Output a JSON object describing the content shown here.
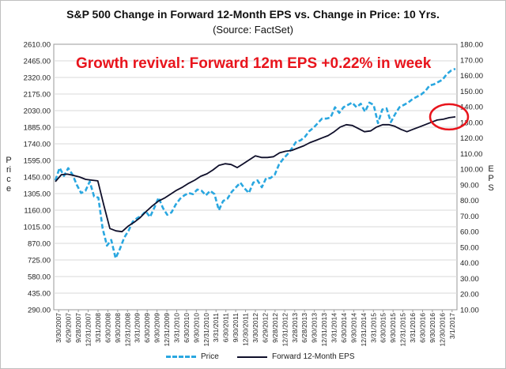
{
  "title": "S&P 500 Change in Forward 12-Month EPS vs. Change in Price: 10 Yrs.",
  "subtitle": "(Source: FactSet)",
  "annotation": "Growth revival: Forward 12m EPS +0.22% in week",
  "left_axis_title": "Price",
  "right_axis_title": "EPS",
  "colors": {
    "price": "#2aa7e0",
    "eps": "#0f0f2a",
    "annotation": "#e8141c",
    "grid": "#d9d9d9"
  },
  "chart_data": {
    "type": "line",
    "title": "S&P 500 Change in Forward 12-Month EPS vs. Change in Price: 10 Yrs.",
    "subtitle": "(Source: FactSet)",
    "ylabel": "Price",
    "y2label": "EPS",
    "ylim": [
      290,
      2610
    ],
    "y2lim": [
      10,
      180
    ],
    "yticks": [
      "2610.00",
      "2465.00",
      "2320.00",
      "2175.00",
      "2030.00",
      "1885.00",
      "1740.00",
      "1595.00",
      "1450.00",
      "1305.00",
      "1160.00",
      "1015.00",
      "870.00",
      "725.00",
      "580.00",
      "435.00",
      "290.00"
    ],
    "y2ticks": [
      "180.00",
      "170.00",
      "160.00",
      "150.00",
      "140.00",
      "130.00",
      "120.00",
      "110.00",
      "100.00",
      "90.00",
      "80.00",
      "70.00",
      "60.00",
      "50.00",
      "40.00",
      "30.00",
      "20.00",
      "10.00"
    ],
    "xticks": [
      "3/30/2007",
      "6/29/2007",
      "9/28/2007",
      "12/31/2007",
      "3/31/2008",
      "6/30/2008",
      "9/30/2008",
      "12/31/2008",
      "3/31/2009",
      "6/30/2009",
      "9/30/2009",
      "12/31/2009",
      "3/31/2010",
      "6/30/2010",
      "9/30/2010",
      "12/31/2010",
      "3/31/2011",
      "6/30/2011",
      "9/30/2011",
      "12/30/2011",
      "3/30/2012",
      "6/29/2012",
      "9/28/2012",
      "12/31/2012",
      "3/28/2013",
      "6/28/2013",
      "9/30/2013",
      "12/31/2013",
      "3/31/2014",
      "6/30/2014",
      "9/30/2014",
      "12/31/2014",
      "3/31/2015",
      "6/30/2015",
      "9/30/2015",
      "12/31/2015",
      "3/31/2016",
      "6/30/2016",
      "9/30/2016",
      "12/30/2016",
      "3/1/2017"
    ],
    "grid": true,
    "legend_position": "bottom",
    "series": [
      {
        "name": "Price",
        "axis": "left",
        "style": "dashed",
        "values": [
          1420,
          1530,
          1460,
          1527,
          1470,
          1380,
          1310,
          1330,
          1410,
          1280,
          1270,
          1000,
          850,
          900,
          740,
          820,
          920,
          980,
          1060,
          1090,
          1110,
          1150,
          1100,
          1180,
          1270,
          1180,
          1120,
          1140,
          1210,
          1260,
          1290,
          1310,
          1300,
          1340,
          1330,
          1290,
          1330,
          1300,
          1160,
          1240,
          1260,
          1320,
          1360,
          1400,
          1350,
          1310,
          1400,
          1420,
          1360,
          1440,
          1440,
          1470,
          1560,
          1610,
          1650,
          1700,
          1760,
          1770,
          1800,
          1850,
          1880,
          1920,
          1960,
          1960,
          1970,
          2060,
          2010,
          2060,
          2080,
          2100,
          2060,
          2090,
          2020,
          2100,
          2080,
          1920,
          2040,
          2050,
          1930,
          2000,
          2060,
          2080,
          2100,
          2130,
          2150,
          2170,
          2200,
          2250,
          2260,
          2280,
          2300,
          2350,
          2380,
          2395
        ]
      },
      {
        "name": "Forward 12-Month EPS",
        "axis": "right",
        "style": "solid",
        "values": [
          92.0,
          96.5,
          96.8,
          96.0,
          95.0,
          93.5,
          93.0,
          92.5,
          77.0,
          62.0,
          60.5,
          60.0,
          63.5,
          66.0,
          69.0,
          73.0,
          76.5,
          79.5,
          81.5,
          84.0,
          86.5,
          88.5,
          91.0,
          93.0,
          95.5,
          97.0,
          99.5,
          102.5,
          103.5,
          103.0,
          101.0,
          103.5,
          106.0,
          108.5,
          107.5,
          107.5,
          108.0,
          110.5,
          111.5,
          112.0,
          113.5,
          115.0,
          117.0,
          118.5,
          120.0,
          121.5,
          124.0,
          127.0,
          128.5,
          128.0,
          126.0,
          124.0,
          124.5,
          127.0,
          128.5,
          128.5,
          127.5,
          125.5,
          124.0,
          125.5,
          127.0,
          128.5,
          130.0,
          131.5,
          132.0,
          133.0,
          133.5
        ]
      }
    ],
    "highlight": "circle around latest EPS value"
  },
  "legend": {
    "price_label": "Price",
    "eps_label": "Forward 12-Month EPS"
  }
}
